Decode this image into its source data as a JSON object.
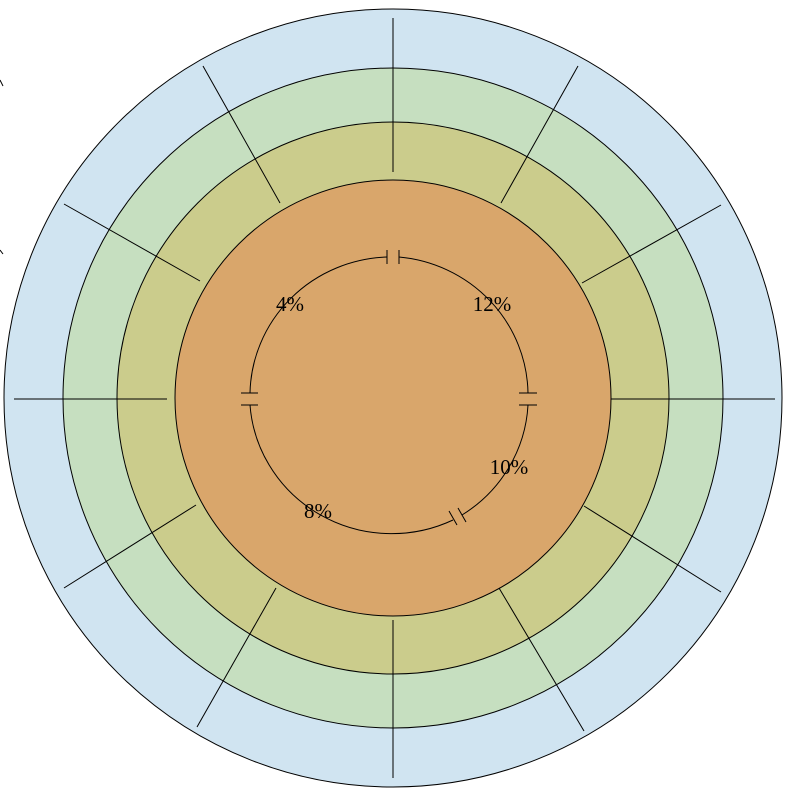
{
  "diagram": {
    "colors": {
      "ring_outer": "#d0e4f1",
      "ring_second": "#c6dfc0",
      "ring_third": "#cbcc8c",
      "core": "#d9a66b",
      "stroke": "#000000"
    },
    "labels": [
      {
        "id": "label-4pct",
        "text": "4%"
      },
      {
        "id": "label-12pct",
        "text": "12%"
      },
      {
        "id": "label-10pct",
        "text": "10%"
      },
      {
        "id": "label-8pct",
        "text": "8%"
      }
    ]
  }
}
